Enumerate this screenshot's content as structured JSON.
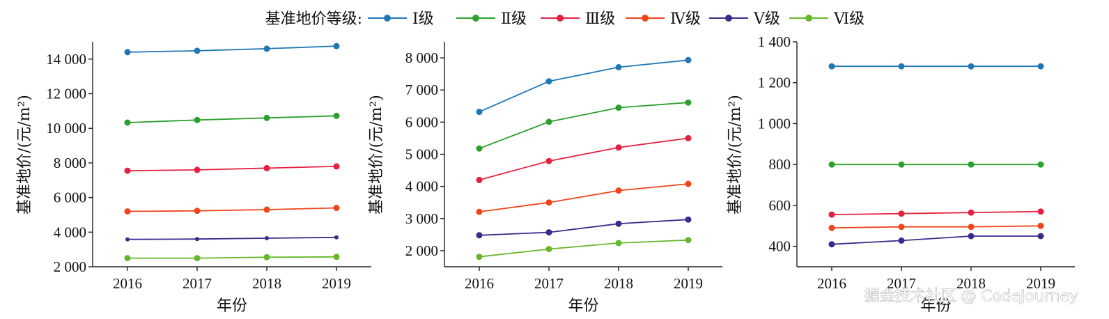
{
  "legend": {
    "title": "基准地价等级:",
    "series": [
      {
        "name": "Ⅰ级",
        "color": "#1f77b4"
      },
      {
        "name": "Ⅱ级",
        "color": "#2ca02c"
      },
      {
        "name": "Ⅲ级",
        "color": "#e6213f"
      },
      {
        "name": "Ⅳ级",
        "color": "#f0441b"
      },
      {
        "name": "Ⅴ级",
        "color": "#3b2a8c"
      },
      {
        "name": "Ⅵ级",
        "color": "#66b82a"
      }
    ]
  },
  "watermark": "掘金技术社区 @ CodeJourney",
  "chart_data": [
    {
      "type": "line",
      "xlabel": "年份",
      "ylabel": "基准地价/(元/m²)",
      "categories": [
        "2016",
        "2017",
        "2018",
        "2019"
      ],
      "ylim": [
        2000,
        15000
      ],
      "yticks": [
        2000,
        4000,
        6000,
        8000,
        10000,
        12000,
        14000
      ],
      "ytick_labels": [
        "2 000",
        "4 000",
        "6 000",
        "8 000",
        "10 000",
        "12 000",
        "14 000"
      ],
      "series": [
        {
          "name": "Ⅰ级",
          "values": [
            14400,
            14480,
            14600,
            14750
          ]
        },
        {
          "name": "Ⅱ级",
          "values": [
            10330,
            10480,
            10600,
            10720
          ]
        },
        {
          "name": "Ⅲ级",
          "values": [
            7550,
            7600,
            7700,
            7800
          ]
        },
        {
          "name": "Ⅳ级",
          "values": [
            5200,
            5230,
            5300,
            5400
          ]
        },
        {
          "name": "Ⅴ级",
          "values": [
            3580,
            3600,
            3650,
            3700
          ]
        },
        {
          "name": "Ⅵ级",
          "values": [
            2500,
            2500,
            2550,
            2570
          ]
        }
      ]
    },
    {
      "type": "line",
      "xlabel": "年份",
      "ylabel": "基准地价/(元/m²)",
      "categories": [
        "2016",
        "2017",
        "2018",
        "2019"
      ],
      "ylim": [
        1500,
        8500
      ],
      "yticks": [
        2000,
        3000,
        4000,
        5000,
        6000,
        7000,
        8000
      ],
      "ytick_labels": [
        "2 000",
        "3 000",
        "4 000",
        "5 000",
        "6 000",
        "7 000",
        "8 000"
      ],
      "series": [
        {
          "name": "Ⅰ级",
          "values": [
            6320,
            7270,
            7710,
            7930
          ]
        },
        {
          "name": "Ⅱ级",
          "values": [
            5180,
            6010,
            6450,
            6610
          ]
        },
        {
          "name": "Ⅲ级",
          "values": [
            4200,
            4790,
            5210,
            5500
          ]
        },
        {
          "name": "Ⅳ级",
          "values": [
            3210,
            3500,
            3870,
            4080
          ]
        },
        {
          "name": "Ⅴ级",
          "values": [
            2480,
            2570,
            2840,
            2970
          ]
        },
        {
          "name": "Ⅵ级",
          "values": [
            1810,
            2050,
            2240,
            2330
          ]
        }
      ]
    },
    {
      "type": "line",
      "xlabel": "年份",
      "ylabel": "基准地价/(元/m²)",
      "categories": [
        "2016",
        "2017",
        "2018",
        "2019"
      ],
      "ylim": [
        300,
        1400
      ],
      "yticks": [
        400,
        600,
        800,
        1000,
        1200,
        1400
      ],
      "ytick_labels": [
        "400",
        "600",
        "800",
        "1 000",
        "1 200",
        "1 400"
      ],
      "series": [
        {
          "name": "Ⅰ级",
          "values": [
            1280,
            1280,
            1280,
            1280
          ]
        },
        {
          "name": "Ⅱ级",
          "values": [
            800,
            800,
            800,
            800
          ]
        },
        {
          "name": "Ⅲ级",
          "values": [
            555,
            560,
            565,
            570
          ]
        },
        {
          "name": "Ⅳ级",
          "values": [
            490,
            495,
            495,
            500
          ]
        },
        {
          "name": "Ⅴ级",
          "values": [
            410,
            428,
            450,
            450
          ]
        }
      ]
    }
  ]
}
